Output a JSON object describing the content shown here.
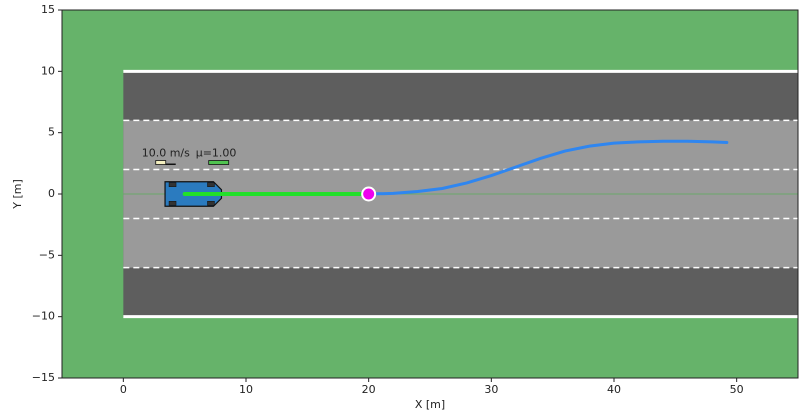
{
  "chart_data": {
    "type": "trajectory",
    "xlabel": "X [m]",
    "ylabel": "Y [m]",
    "xlim": [
      -5,
      55
    ],
    "ylim": [
      -15,
      15
    ],
    "xticks": [
      0,
      10,
      20,
      30,
      40,
      50
    ],
    "yticks": [
      {
        "value": -15,
        "label": "−15"
      },
      {
        "value": -10,
        "label": "−10"
      },
      {
        "value": -5,
        "label": "−5"
      },
      0,
      5,
      10,
      15
    ],
    "road": {
      "x_start": 0,
      "solid_lines": [
        -10,
        10
      ],
      "dashed_lines": [
        -6,
        -2,
        2,
        6
      ],
      "inner_half_width": 6,
      "center_line": 0
    },
    "reference": {
      "color": "#22e02a",
      "x": [
        5,
        20
      ],
      "y": [
        0,
        0
      ]
    },
    "path": {
      "color": "#2f86f0",
      "x": [
        20,
        22,
        24,
        26,
        28,
        30,
        32,
        34,
        36,
        38,
        40,
        42,
        44,
        46,
        48,
        49.2
      ],
      "y": [
        0,
        0.05,
        0.2,
        0.45,
        0.9,
        1.5,
        2.2,
        2.9,
        3.5,
        3.9,
        4.15,
        4.25,
        4.3,
        4.3,
        4.25,
        4.2
      ]
    },
    "target": {
      "color": "#ee00ee",
      "x": 20,
      "y": 0
    },
    "car": {
      "color": "#2b7bbf",
      "x": 5.7,
      "y": 0,
      "length": 4.6,
      "width": 2.0
    },
    "annotations": [
      {
        "text": "10.0 m/s",
        "x": 1.5,
        "y": 3.3
      },
      {
        "text": "μ=1.00",
        "x": 5.9,
        "y": 3.3
      }
    ]
  }
}
